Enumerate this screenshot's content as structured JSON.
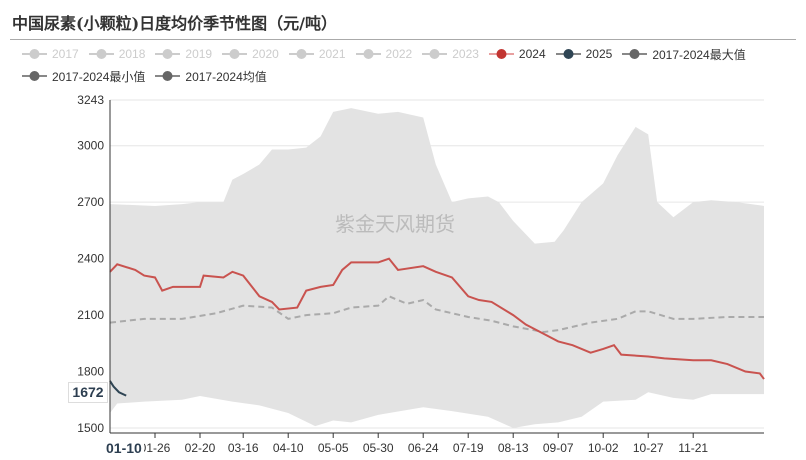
{
  "chart_data": {
    "type": "line",
    "title": "中国尿素(小颗粒)日度均价季节性图（元/吨）",
    "legend": [
      {
        "name": "2017",
        "color": "#cccccc",
        "active": false
      },
      {
        "name": "2018",
        "color": "#cccccc",
        "active": false
      },
      {
        "name": "2019",
        "color": "#cccccc",
        "active": false
      },
      {
        "name": "2020",
        "color": "#cccccc",
        "active": false
      },
      {
        "name": "2021",
        "color": "#cccccc",
        "active": false
      },
      {
        "name": "2022",
        "color": "#cccccc",
        "active": false
      },
      {
        "name": "2023",
        "color": "#cccccc",
        "active": false
      },
      {
        "name": "2024",
        "color": "#c23531",
        "active": true
      },
      {
        "name": "2025",
        "color": "#2f4554",
        "active": true
      },
      {
        "name": "2017-2024最大值",
        "color": "#666666",
        "active": true
      },
      {
        "name": "2017-2024最小值",
        "color": "#666666",
        "active": true
      },
      {
        "name": "2017-2024均值",
        "color": "#666666",
        "active": true
      }
    ],
    "ylim": [
      1500,
      3243
    ],
    "yticks": [
      1500,
      1800,
      2100,
      2400,
      2700,
      3000,
      3243
    ],
    "xticks": [
      "01-26",
      "02-20",
      "03-16",
      "04-10",
      "05-05",
      "05-30",
      "06-24",
      "07-19",
      "08-13",
      "09-07",
      "10-02",
      "10-27",
      "11-21"
    ],
    "pointer": {
      "x": "01-10",
      "y": "1672"
    },
    "watermark": "紫金天风期货",
    "series": {
      "max": [
        [
          "01-01",
          2690
        ],
        [
          "01-26",
          2680
        ],
        [
          "02-10",
          2690
        ],
        [
          "02-20",
          2700
        ],
        [
          "03-05",
          2700
        ],
        [
          "03-10",
          2820
        ],
        [
          "03-16",
          2850
        ],
        [
          "03-25",
          2900
        ],
        [
          "04-01",
          2980
        ],
        [
          "04-10",
          2980
        ],
        [
          "04-20",
          2990
        ],
        [
          "04-28",
          3050
        ],
        [
          "05-05",
          3180
        ],
        [
          "05-15",
          3200
        ],
        [
          "05-30",
          3170
        ],
        [
          "06-10",
          3180
        ],
        [
          "06-24",
          3150
        ],
        [
          "07-01",
          2900
        ],
        [
          "07-10",
          2700
        ],
        [
          "07-19",
          2720
        ],
        [
          "07-30",
          2730
        ],
        [
          "08-05",
          2700
        ],
        [
          "08-13",
          2600
        ],
        [
          "08-25",
          2480
        ],
        [
          "09-05",
          2490
        ],
        [
          "09-10",
          2550
        ],
        [
          "09-20",
          2700
        ],
        [
          "10-02",
          2800
        ],
        [
          "10-10",
          2950
        ],
        [
          "10-20",
          3100
        ],
        [
          "10-27",
          3060
        ],
        [
          "11-01",
          2700
        ],
        [
          "11-10",
          2620
        ],
        [
          "11-21",
          2700
        ],
        [
          "12-01",
          2710
        ],
        [
          "12-15",
          2700
        ],
        [
          "12-31",
          2680
        ]
      ],
      "min": [
        [
          "01-01",
          1580
        ],
        [
          "01-05",
          1630
        ],
        [
          "01-20",
          1640
        ],
        [
          "02-10",
          1650
        ],
        [
          "02-20",
          1670
        ],
        [
          "03-10",
          1640
        ],
        [
          "03-25",
          1620
        ],
        [
          "04-10",
          1580
        ],
        [
          "04-25",
          1510
        ],
        [
          "05-05",
          1540
        ],
        [
          "05-15",
          1530
        ],
        [
          "05-30",
          1570
        ],
        [
          "06-24",
          1610
        ],
        [
          "07-10",
          1590
        ],
        [
          "07-30",
          1560
        ],
        [
          "08-13",
          1500
        ],
        [
          "08-25",
          1520
        ],
        [
          "09-07",
          1530
        ],
        [
          "09-20",
          1560
        ],
        [
          "10-02",
          1640
        ],
        [
          "10-20",
          1650
        ],
        [
          "10-27",
          1690
        ],
        [
          "11-10",
          1660
        ],
        [
          "11-21",
          1650
        ],
        [
          "12-01",
          1680
        ],
        [
          "12-31",
          1680
        ]
      ],
      "y2024": [
        [
          "01-01",
          2330
        ],
        [
          "01-05",
          2370
        ],
        [
          "01-15",
          2340
        ],
        [
          "01-20",
          2310
        ],
        [
          "01-26",
          2300
        ],
        [
          "01-30",
          2230
        ],
        [
          "02-05",
          2250
        ],
        [
          "02-20",
          2250
        ],
        [
          "02-22",
          2310
        ],
        [
          "03-05",
          2300
        ],
        [
          "03-10",
          2330
        ],
        [
          "03-16",
          2310
        ],
        [
          "03-25",
          2200
        ],
        [
          "04-01",
          2170
        ],
        [
          "04-05",
          2130
        ],
        [
          "04-15",
          2140
        ],
        [
          "04-20",
          2230
        ],
        [
          "04-28",
          2250
        ],
        [
          "05-05",
          2260
        ],
        [
          "05-10",
          2340
        ],
        [
          "05-15",
          2380
        ],
        [
          "05-30",
          2380
        ],
        [
          "06-05",
          2400
        ],
        [
          "06-10",
          2340
        ],
        [
          "06-24",
          2360
        ],
        [
          "07-01",
          2330
        ],
        [
          "07-10",
          2300
        ],
        [
          "07-19",
          2200
        ],
        [
          "07-25",
          2180
        ],
        [
          "08-01",
          2170
        ],
        [
          "08-13",
          2100
        ],
        [
          "08-20",
          2050
        ],
        [
          "08-30",
          2000
        ],
        [
          "09-07",
          1960
        ],
        [
          "09-15",
          1940
        ],
        [
          "09-25",
          1900
        ],
        [
          "10-02",
          1920
        ],
        [
          "10-08",
          1940
        ],
        [
          "10-12",
          1890
        ],
        [
          "10-27",
          1880
        ],
        [
          "11-05",
          1870
        ],
        [
          "11-21",
          1860
        ],
        [
          "12-01",
          1860
        ],
        [
          "12-10",
          1840
        ],
        [
          "12-20",
          1800
        ],
        [
          "12-28",
          1790
        ],
        [
          "12-31",
          1760
        ]
      ],
      "mean": [
        [
          "01-01",
          2060
        ],
        [
          "01-20",
          2080
        ],
        [
          "02-10",
          2080
        ],
        [
          "03-01",
          2110
        ],
        [
          "03-16",
          2150
        ],
        [
          "04-01",
          2140
        ],
        [
          "04-10",
          2080
        ],
        [
          "04-20",
          2100
        ],
        [
          "05-05",
          2110
        ],
        [
          "05-15",
          2140
        ],
        [
          "05-30",
          2150
        ],
        [
          "06-05",
          2200
        ],
        [
          "06-15",
          2160
        ],
        [
          "06-24",
          2180
        ],
        [
          "07-01",
          2130
        ],
        [
          "07-19",
          2090
        ],
        [
          "08-01",
          2070
        ],
        [
          "08-13",
          2040
        ],
        [
          "08-30",
          2010
        ],
        [
          "09-07",
          2020
        ],
        [
          "09-25",
          2060
        ],
        [
          "10-10",
          2080
        ],
        [
          "10-20",
          2120
        ],
        [
          "10-27",
          2120
        ],
        [
          "11-10",
          2080
        ],
        [
          "11-21",
          2080
        ],
        [
          "12-10",
          2090
        ],
        [
          "12-31",
          2090
        ]
      ],
      "y2025": [
        [
          "01-01",
          1750
        ],
        [
          "01-03",
          1720
        ],
        [
          "01-06",
          1690
        ],
        [
          "01-10",
          1672
        ]
      ]
    }
  }
}
